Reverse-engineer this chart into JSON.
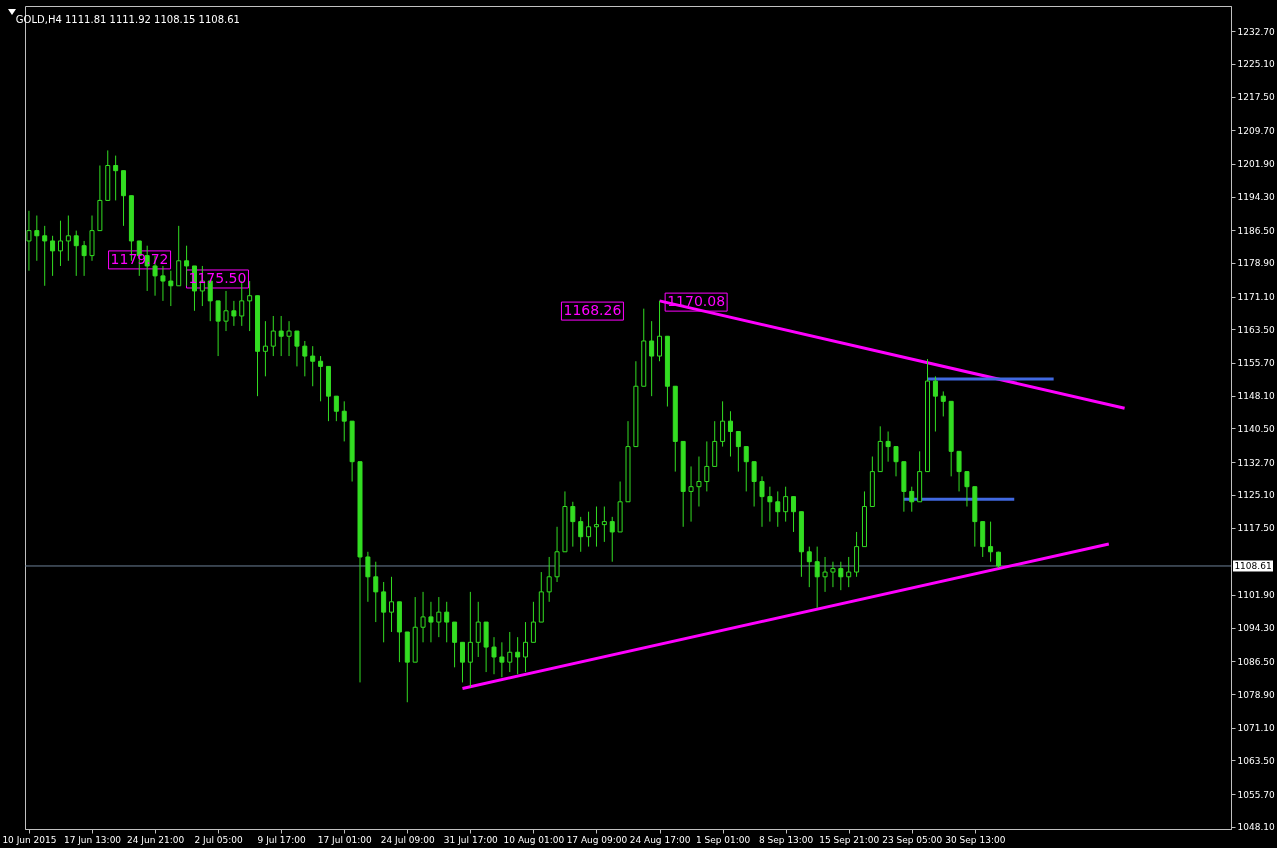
{
  "chart_data": {
    "type": "candlestick",
    "title": "GOLD,H4  1111.81 1111.92 1108.15 1108.61",
    "color": "#33dd22",
    "categories": [
      "10 Jun 2015",
      null,
      null,
      null,
      null,
      null,
      null,
      null,
      "17 Jun 13:00",
      null,
      null,
      null,
      null,
      null,
      null,
      null,
      "24 Jun 21:00",
      null,
      null,
      null,
      null,
      null,
      null,
      null,
      "2 Jul 05:00",
      null,
      null,
      null,
      null,
      null,
      null,
      null,
      "9 Jul 17:00",
      null,
      null,
      null,
      null,
      null,
      null,
      null,
      "17 Jul 01:00",
      null,
      null,
      null,
      null,
      null,
      null,
      null,
      "24 Jul 09:00",
      null,
      null,
      null,
      null,
      null,
      null,
      null,
      "31 Jul 17:00",
      null,
      null,
      null,
      null,
      null,
      null,
      null,
      "10 Aug 01:00",
      null,
      null,
      null,
      null,
      null,
      null,
      null,
      "17 Aug 09:00",
      null,
      null,
      null,
      null,
      null,
      null,
      null,
      "24 Aug 17:00",
      null,
      null,
      null,
      null,
      null,
      null,
      null,
      "1 Sep 01:00",
      null,
      null,
      null,
      null,
      null,
      null,
      null,
      "8 Sep 13:00",
      null,
      null,
      null,
      null,
      null,
      null,
      null,
      "15 Sep 21:00",
      null,
      null,
      null,
      null,
      null,
      null,
      null,
      "23 Sep 05:00",
      null,
      null,
      null,
      null,
      null,
      null,
      null,
      "30 Sep 13:00",
      null,
      null,
      null,
      null,
      null,
      null,
      null,
      null,
      null,
      null,
      null,
      null,
      null,
      null,
      null,
      null,
      null,
      null,
      null,
      null,
      null,
      null,
      null,
      null,
      null,
      null,
      null,
      null,
      null,
      null,
      null,
      null
    ],
    "ohlc": [
      [
        1184.0,
        1191.0,
        1177.1,
        1186.4
      ],
      [
        1186.4,
        1189.9,
        1179.4,
        1185.2
      ],
      [
        1185.2,
        1187.5,
        1173.6,
        1184.0
      ],
      [
        1184.0,
        1185.2,
        1175.9,
        1181.7
      ],
      [
        1181.7,
        1188.7,
        1178.2,
        1184.0
      ],
      [
        1184.0,
        1189.9,
        1179.4,
        1185.2
      ],
      [
        1185.2,
        1186.4,
        1175.9,
        1182.9
      ],
      [
        1182.9,
        1184.0,
        1175.9,
        1180.6
      ],
      [
        1180.6,
        1189.9,
        1179.4,
        1186.4
      ],
      [
        1186.4,
        1201.5,
        1186.4,
        1193.4
      ],
      [
        1193.4,
        1205.0,
        1193.4,
        1201.5
      ],
      [
        1201.5,
        1203.8,
        1193.4,
        1200.3
      ],
      [
        1200.3,
        1200.3,
        1187.5,
        1194.5
      ],
      [
        1194.5,
        1194.5,
        1179.4,
        1184.0
      ],
      [
        1184.0,
        1184.0,
        1175.9,
        1180.6
      ],
      [
        1180.6,
        1182.9,
        1172.4,
        1178.2
      ],
      [
        1178.2,
        1180.6,
        1171.3,
        1175.9
      ],
      [
        1175.9,
        1178.2,
        1170.1,
        1174.7
      ],
      [
        1174.7,
        1177.1,
        1168.9,
        1173.6
      ],
      [
        1173.6,
        1187.5,
        1173.6,
        1179.4
      ],
      [
        1179.4,
        1182.9,
        1173.6,
        1178.2
      ],
      [
        1178.2,
        1178.2,
        1167.8,
        1172.4
      ],
      [
        1172.4,
        1178.2,
        1168.9,
        1174.7
      ],
      [
        1174.7,
        1174.7,
        1165.4,
        1170.1
      ],
      [
        1170.1,
        1170.1,
        1157.3,
        1165.4
      ],
      [
        1165.4,
        1172.4,
        1163.1,
        1167.8
      ],
      [
        1167.8,
        1170.1,
        1164.3,
        1166.6
      ],
      [
        1166.6,
        1174.7,
        1164.3,
        1170.1
      ],
      [
        1170.1,
        1174.7,
        1163.1,
        1171.3
      ],
      [
        1171.3,
        1171.3,
        1148.0,
        1158.4
      ],
      [
        1158.4,
        1165.4,
        1152.6,
        1159.6
      ],
      [
        1159.6,
        1166.6,
        1157.3,
        1163.1
      ],
      [
        1163.1,
        1166.6,
        1157.3,
        1161.9
      ],
      [
        1161.9,
        1165.4,
        1157.3,
        1163.1
      ],
      [
        1163.1,
        1163.1,
        1154.9,
        1159.6
      ],
      [
        1159.6,
        1160.8,
        1152.6,
        1157.3
      ],
      [
        1157.3,
        1159.6,
        1150.3,
        1156.1
      ],
      [
        1156.1,
        1157.3,
        1146.8,
        1154.9
      ],
      [
        1154.9,
        1154.9,
        1142.2,
        1148.0
      ],
      [
        1148.0,
        1148.0,
        1142.2,
        1144.5
      ],
      [
        1144.5,
        1146.8,
        1137.5,
        1142.2
      ],
      [
        1142.2,
        1142.2,
        1128.2,
        1132.8
      ],
      [
        1132.8,
        1132.8,
        1081.6,
        1110.7
      ],
      [
        1110.7,
        1111.9,
        1100.3,
        1106.1
      ],
      [
        1106.1,
        1109.6,
        1095.6,
        1102.6
      ],
      [
        1102.6,
        1104.9,
        1090.9,
        1097.9
      ],
      [
        1097.9,
        1106.1,
        1093.3,
        1100.3
      ],
      [
        1100.3,
        1100.3,
        1086.3,
        1093.3
      ],
      [
        1093.3,
        1093.3,
        1077.0,
        1086.3
      ],
      [
        1086.3,
        1101.4,
        1086.3,
        1094.4
      ],
      [
        1094.4,
        1102.6,
        1090.9,
        1096.8
      ],
      [
        1096.8,
        1100.3,
        1090.9,
        1095.6
      ],
      [
        1095.6,
        1101.4,
        1092.1,
        1097.9
      ],
      [
        1097.9,
        1100.3,
        1090.9,
        1095.6
      ],
      [
        1095.6,
        1095.6,
        1085.1,
        1090.9
      ],
      [
        1090.9,
        1090.9,
        1081.6,
        1086.3
      ],
      [
        1086.3,
        1102.6,
        1080.5,
        1090.9
      ],
      [
        1090.9,
        1100.3,
        1087.5,
        1095.6
      ],
      [
        1095.6,
        1095.6,
        1084.0,
        1089.8
      ],
      [
        1089.8,
        1092.1,
        1083.5,
        1087.5
      ],
      [
        1087.5,
        1090.9,
        1082.8,
        1086.3
      ],
      [
        1086.3,
        1093.3,
        1084.0,
        1088.6
      ],
      [
        1088.6,
        1092.1,
        1083.5,
        1087.5
      ],
      [
        1087.5,
        1095.6,
        1084.0,
        1090.9
      ],
      [
        1090.9,
        1100.3,
        1090.9,
        1095.6
      ],
      [
        1095.6,
        1107.2,
        1095.6,
        1102.6
      ],
      [
        1102.6,
        1110.7,
        1100.3,
        1106.1
      ],
      [
        1106.1,
        1117.7,
        1104.9,
        1111.9
      ],
      [
        1111.9,
        1125.9,
        1111.9,
        1122.4
      ],
      [
        1122.4,
        1123.5,
        1113.1,
        1118.9
      ],
      [
        1118.9,
        1120.0,
        1111.9,
        1115.4
      ],
      [
        1115.4,
        1121.2,
        1113.1,
        1117.7
      ],
      [
        1117.7,
        1122.4,
        1113.1,
        1118.2
      ],
      [
        1118.2,
        1122.4,
        1114.2,
        1118.9
      ],
      [
        1118.9,
        1120.0,
        1109.6,
        1116.5
      ],
      [
        1116.5,
        1128.2,
        1116.5,
        1123.5
      ],
      [
        1123.5,
        1142.2,
        1123.5,
        1136.3
      ],
      [
        1136.3,
        1156.1,
        1136.3,
        1150.3
      ],
      [
        1150.3,
        1168.3,
        1150.3,
        1160.8
      ],
      [
        1160.8,
        1165.4,
        1148.0,
        1157.3
      ],
      [
        1157.3,
        1170.1,
        1156.1,
        1161.9
      ],
      [
        1161.9,
        1161.9,
        1145.6,
        1150.3
      ],
      [
        1150.3,
        1150.3,
        1130.5,
        1137.5
      ],
      [
        1137.5,
        1137.5,
        1117.7,
        1125.9
      ],
      [
        1125.9,
        1131.7,
        1118.9,
        1127.0
      ],
      [
        1127.0,
        1134.0,
        1122.4,
        1128.2
      ],
      [
        1128.2,
        1137.5,
        1125.9,
        1131.7
      ],
      [
        1131.7,
        1142.2,
        1131.7,
        1137.5
      ],
      [
        1137.5,
        1146.8,
        1136.3,
        1142.2
      ],
      [
        1142.2,
        1144.5,
        1134.0,
        1139.8
      ],
      [
        1139.8,
        1139.8,
        1130.5,
        1136.3
      ],
      [
        1136.3,
        1136.3,
        1125.9,
        1132.8
      ],
      [
        1132.8,
        1132.8,
        1122.4,
        1128.2
      ],
      [
        1128.2,
        1129.4,
        1117.7,
        1124.7
      ],
      [
        1124.7,
        1127.0,
        1118.9,
        1123.5
      ],
      [
        1123.5,
        1125.9,
        1117.7,
        1121.2
      ],
      [
        1121.2,
        1127.0,
        1118.9,
        1124.7
      ],
      [
        1124.7,
        1124.7,
        1116.5,
        1121.2
      ],
      [
        1121.2,
        1121.2,
        1106.1,
        1111.9
      ],
      [
        1111.9,
        1113.1,
        1103.7,
        1109.6
      ],
      [
        1109.6,
        1113.1,
        1098.9,
        1106.1
      ],
      [
        1106.1,
        1110.7,
        1102.6,
        1107.2
      ],
      [
        1107.2,
        1109.6,
        1103.7,
        1108.0
      ],
      [
        1108.0,
        1109.6,
        1103.0,
        1106.1
      ],
      [
        1106.1,
        1110.7,
        1103.7,
        1107.2
      ],
      [
        1107.2,
        1116.5,
        1106.1,
        1113.1
      ],
      [
        1113.1,
        1125.9,
        1113.1,
        1122.4
      ],
      [
        1122.4,
        1134.0,
        1122.4,
        1130.5
      ],
      [
        1130.5,
        1141.0,
        1130.5,
        1137.5
      ],
      [
        1137.5,
        1139.8,
        1132.8,
        1136.3
      ],
      [
        1136.3,
        1136.3,
        1129.4,
        1132.8
      ],
      [
        1132.8,
        1132.8,
        1121.2,
        1125.9
      ],
      [
        1125.9,
        1127.0,
        1121.2,
        1123.5
      ],
      [
        1123.5,
        1135.2,
        1123.5,
        1130.5
      ],
      [
        1130.5,
        1156.6,
        1130.5,
        1151.5
      ],
      [
        1151.5,
        1152.6,
        1139.8,
        1148.0
      ],
      [
        1148.0,
        1149.1,
        1143.3,
        1146.8
      ],
      [
        1146.8,
        1146.8,
        1129.4,
        1135.2
      ],
      [
        1135.2,
        1135.2,
        1125.9,
        1130.5
      ],
      [
        1130.5,
        1130.5,
        1122.4,
        1127.0
      ],
      [
        1127.0,
        1127.0,
        1113.1,
        1118.9
      ],
      [
        1118.9,
        1118.9,
        1110.7,
        1113.1
      ],
      [
        1113.1,
        1118.9,
        1109.6,
        1111.9
      ],
      [
        1111.81,
        1111.92,
        1108.15,
        1108.61
      ],
      null,
      null,
      null,
      null,
      null,
      null,
      null,
      null,
      null,
      null,
      null,
      null,
      null,
      null,
      null,
      null,
      null,
      null,
      null,
      null,
      null,
      null,
      null,
      null,
      null,
      null,
      null,
      null,
      null
    ],
    "series": [
      {
        "type": "line",
        "color": "#ff00ff",
        "values": [
          null,
          null,
          null,
          null,
          null,
          null,
          null,
          null,
          null,
          null,
          null,
          null,
          null,
          null,
          null,
          null,
          null,
          null,
          null,
          null,
          null,
          null,
          null,
          null,
          null,
          null,
          null,
          null,
          null,
          null,
          null,
          null,
          null,
          null,
          null,
          null,
          null,
          null,
          null,
          null,
          null,
          null,
          null,
          null,
          null,
          null,
          null,
          null,
          null,
          null,
          null,
          null,
          null,
          null,
          null,
          1080.2,
          null,
          null,
          null,
          null,
          null,
          null,
          null,
          null,
          null,
          null,
          null,
          null,
          null,
          null,
          null,
          null,
          null,
          null,
          null,
          null,
          null,
          null,
          null,
          null,
          null,
          null,
          null,
          null,
          null,
          null,
          null,
          null,
          null,
          null,
          null,
          null,
          null,
          null,
          null,
          null,
          null,
          null,
          null,
          null,
          null,
          null,
          null,
          null,
          null,
          null,
          null,
          null,
          null,
          null,
          null,
          null,
          null,
          null,
          null,
          null,
          null,
          null,
          null,
          null,
          null,
          null,
          null,
          null,
          null,
          null,
          null,
          null,
          null,
          null,
          null,
          null,
          null,
          null,
          null,
          null,
          null,
          1113.7,
          null,
          null,
          null,
          null,
          null,
          null,
          null,
          null,
          null,
          null,
          null,
          null,
          null,
          null,
          null
        ]
      },
      {
        "type": "line",
        "color": "#ff00ff",
        "values": [
          null,
          null,
          null,
          null,
          null,
          null,
          null,
          null,
          null,
          null,
          null,
          null,
          null,
          null,
          null,
          null,
          null,
          null,
          null,
          null,
          null,
          null,
          null,
          null,
          null,
          null,
          null,
          null,
          null,
          null,
          null,
          null,
          null,
          null,
          null,
          null,
          null,
          null,
          null,
          null,
          null,
          null,
          null,
          null,
          null,
          null,
          null,
          null,
          null,
          null,
          null,
          null,
          null,
          null,
          null,
          null,
          null,
          null,
          null,
          null,
          null,
          null,
          null,
          null,
          null,
          null,
          null,
          null,
          null,
          null,
          null,
          null,
          null,
          null,
          null,
          null,
          null,
          null,
          null,
          null,
          1170.1,
          null,
          null,
          null,
          null,
          null,
          null,
          null,
          null,
          null,
          null,
          null,
          null,
          null,
          null,
          null,
          null,
          null,
          null,
          null,
          null,
          null,
          null,
          null,
          null,
          null,
          null,
          null,
          null,
          null,
          null,
          null,
          null,
          null,
          null,
          null,
          null,
          null,
          null,
          null,
          null,
          null,
          null,
          null,
          null,
          null,
          null,
          null,
          null,
          null,
          null,
          null,
          null,
          null,
          null,
          null,
          null,
          null,
          null,
          1145.2,
          null,
          null,
          null,
          null,
          null,
          null,
          null,
          null,
          null,
          null,
          null,
          null,
          null
        ]
      },
      {
        "type": "line",
        "color": "#4169e1",
        "values": [
          null,
          null,
          null,
          null,
          null,
          null,
          null,
          null,
          null,
          null,
          null,
          null,
          null,
          null,
          null,
          null,
          null,
          null,
          null,
          null,
          null,
          null,
          null,
          null,
          null,
          null,
          null,
          null,
          null,
          null,
          null,
          null,
          null,
          null,
          null,
          null,
          null,
          null,
          null,
          null,
          null,
          null,
          null,
          null,
          null,
          null,
          null,
          null,
          null,
          null,
          null,
          null,
          null,
          null,
          null,
          null,
          null,
          null,
          null,
          null,
          null,
          null,
          null,
          null,
          null,
          null,
          null,
          null,
          null,
          null,
          null,
          null,
          null,
          null,
          null,
          null,
          null,
          null,
          null,
          null,
          null,
          null,
          null,
          null,
          null,
          null,
          null,
          null,
          null,
          null,
          null,
          null,
          null,
          null,
          null,
          null,
          null,
          null,
          null,
          null,
          null,
          null,
          null,
          null,
          null,
          null,
          null,
          null,
          null,
          null,
          null,
          null,
          null,
          null,
          1152.0,
          null,
          null,
          null,
          null,
          null,
          null,
          null,
          null,
          null,
          null,
          null,
          null,
          null,
          null,
          null,
          1152.0,
          null,
          null,
          null,
          null,
          null,
          null,
          null,
          null,
          null,
          null,
          null,
          null,
          null,
          null,
          null,
          null,
          null,
          null,
          null,
          null,
          null,
          null
        ]
      },
      {
        "type": "line",
        "color": "#4169e1",
        "values": [
          null,
          null,
          null,
          null,
          null,
          null,
          null,
          null,
          null,
          null,
          null,
          null,
          null,
          null,
          null,
          null,
          null,
          null,
          null,
          null,
          null,
          null,
          null,
          null,
          null,
          null,
          null,
          null,
          null,
          null,
          null,
          null,
          null,
          null,
          null,
          null,
          null,
          null,
          null,
          null,
          null,
          null,
          null,
          null,
          null,
          null,
          null,
          null,
          null,
          null,
          null,
          null,
          null,
          null,
          null,
          null,
          null,
          null,
          null,
          null,
          null,
          null,
          null,
          null,
          null,
          null,
          null,
          null,
          null,
          null,
          null,
          null,
          null,
          null,
          null,
          null,
          null,
          null,
          null,
          null,
          null,
          null,
          null,
          null,
          null,
          null,
          null,
          null,
          null,
          null,
          null,
          null,
          null,
          null,
          null,
          null,
          null,
          null,
          null,
          null,
          null,
          null,
          null,
          null,
          null,
          null,
          null,
          null,
          null,
          null,
          null,
          1124.1,
          null,
          null,
          null,
          null,
          null,
          null,
          null,
          null,
          null,
          null,
          null,
          null,
          null,
          1124.1,
          null,
          null,
          null,
          null,
          null,
          null,
          null,
          null,
          null,
          null,
          null,
          null,
          null,
          null,
          null,
          null,
          null,
          null,
          null,
          null,
          null,
          null,
          null,
          null,
          null,
          null,
          null
        ]
      }
    ],
    "ref_lines": [
      {
        "axis": "y",
        "value": 1108.61,
        "label": "1108.61",
        "color": "#6d8098"
      }
    ],
    "annotations": [
      "1179.72",
      "1175.50",
      "1168.26",
      "1170.08"
    ],
    "ylim": [
      1047.6,
      1238.5
    ],
    "yticks": [
      {
        "value": 1048.1,
        "label": "1048.10"
      },
      {
        "value": 1055.7,
        "label": "1055.70"
      },
      {
        "value": 1063.5,
        "label": "1063.50"
      },
      {
        "value": 1071.1,
        "label": "1071.10"
      },
      {
        "value": 1078.9,
        "label": "1078.90"
      },
      {
        "value": 1086.5,
        "label": "1086.50"
      },
      {
        "value": 1094.3,
        "label": "1094.30"
      },
      {
        "value": 1101.9,
        "label": "1101.90"
      },
      {
        "value": 1117.5,
        "label": "1117.50"
      },
      {
        "value": 1125.1,
        "label": "1125.10"
      },
      {
        "value": 1132.7,
        "label": "1132.70"
      },
      {
        "value": 1140.5,
        "label": "1140.50"
      },
      {
        "value": 1148.1,
        "label": "1148.10"
      },
      {
        "value": 1155.7,
        "label": "1155.70"
      },
      {
        "value": 1163.5,
        "label": "1163.50"
      },
      {
        "value": 1171.1,
        "label": "1171.10"
      },
      {
        "value": 1178.9,
        "label": "1178.90"
      },
      {
        "value": 1186.5,
        "label": "1186.50"
      },
      {
        "value": 1194.3,
        "label": "1194.30"
      },
      {
        "value": 1201.9,
        "label": "1201.90"
      },
      {
        "value": 1209.7,
        "label": "1209.70"
      },
      {
        "value": 1217.5,
        "label": "1217.50"
      },
      {
        "value": 1225.1,
        "label": "1225.10"
      },
      {
        "value": 1232.7,
        "label": "1232.70"
      }
    ]
  }
}
